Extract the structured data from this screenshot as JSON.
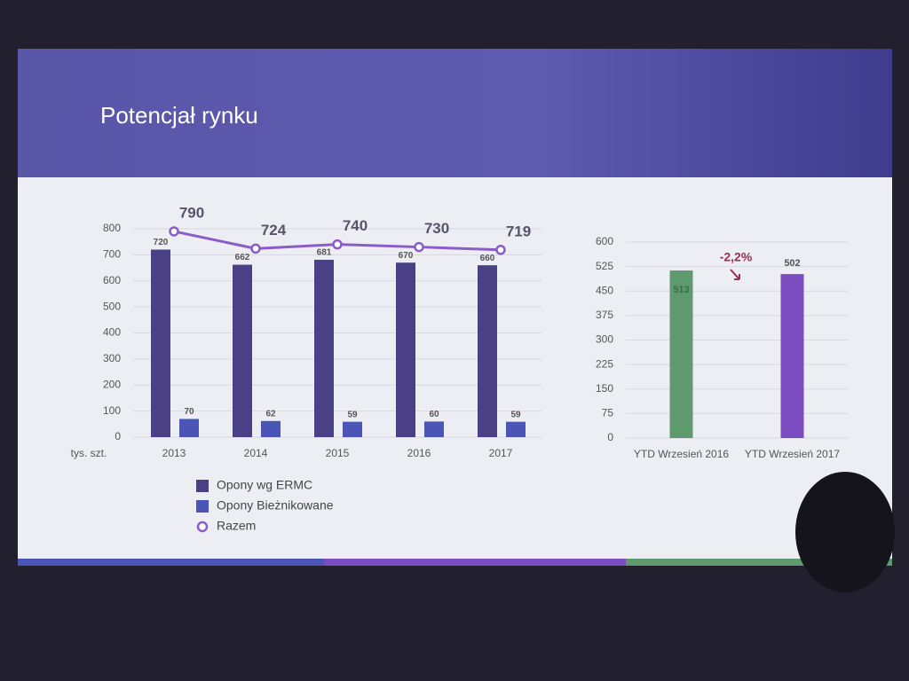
{
  "slide": {
    "title": "Potencjał rynku"
  },
  "chart_data": [
    {
      "type": "bar",
      "categories": [
        "2013",
        "2014",
        "2015",
        "2016",
        "2017"
      ],
      "x_label": "tys. szt.",
      "ylim": [
        0,
        800
      ],
      "yticks": [
        0,
        100,
        200,
        300,
        400,
        500,
        600,
        700,
        800
      ],
      "grid": true,
      "legend": "bottom",
      "series": [
        {
          "name": "Opony wg ERMC",
          "type": "bar",
          "color": "#4b3f86",
          "values": [
            720,
            662,
            681,
            670,
            660
          ]
        },
        {
          "name": "Opony Bieżnikowane",
          "type": "bar",
          "color": "#4a55b5",
          "values": [
            70,
            62,
            59,
            60,
            59
          ]
        },
        {
          "name": "Razem",
          "type": "line",
          "color": "#8a5cc8",
          "values": [
            790,
            724,
            740,
            730,
            719
          ]
        }
      ]
    },
    {
      "type": "bar",
      "categories": [
        "YTD Wrzesień 2016",
        "YTD Wrzesień 2017"
      ],
      "values": [
        513,
        502
      ],
      "colors": [
        "#5f9a6f",
        "#7a4cc0"
      ],
      "ylim": [
        0,
        600
      ],
      "yticks": [
        0,
        75,
        150,
        225,
        300,
        375,
        450,
        525,
        600
      ],
      "grid": true,
      "annotation": "-2,2%"
    }
  ]
}
